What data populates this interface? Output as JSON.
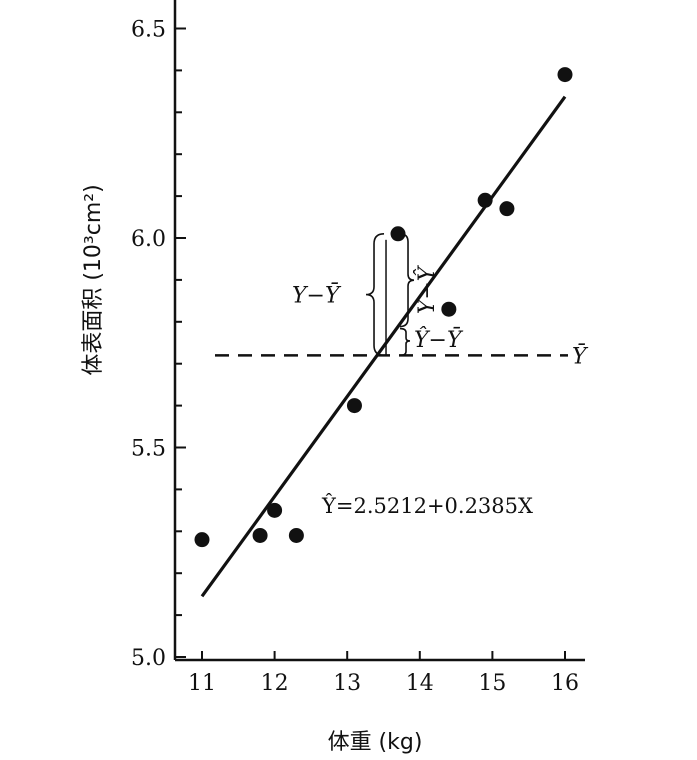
{
  "chart_data": {
    "type": "scatter",
    "xlabel": "体重 (kg)",
    "ylabel": "体表面积 (10³cm²)",
    "xlim": [
      10.7,
      16.2
    ],
    "ylim": [
      5.0,
      6.55
    ],
    "x_ticks": [
      "11",
      "12",
      "13",
      "14",
      "15",
      "16"
    ],
    "y_ticks": [
      "5.0",
      "5.5",
      "6.0",
      "6.5"
    ],
    "points": [
      {
        "x": 11.0,
        "y": 5.28
      },
      {
        "x": 11.8,
        "y": 5.29
      },
      {
        "x": 12.0,
        "y": 5.35
      },
      {
        "x": 12.3,
        "y": 5.29
      },
      {
        "x": 13.1,
        "y": 5.6
      },
      {
        "x": 13.7,
        "y": 6.01
      },
      {
        "x": 14.4,
        "y": 5.83
      },
      {
        "x": 14.9,
        "y": 6.09
      },
      {
        "x": 15.2,
        "y": 6.07
      },
      {
        "x": 16.0,
        "y": 6.39
      }
    ],
    "regression": {
      "intercept": 2.5212,
      "slope": 0.2385,
      "x_range": [
        11.0,
        16.0
      ],
      "equation": "Ŷ=2.5212+0.2385X"
    },
    "mean_y": {
      "value": 5.72,
      "label": "Ȳ"
    },
    "annotations": {
      "y_minus_ybar": "Y−Ȳ",
      "y_minus_yhat": "Y−Ŷ",
      "yhat_minus_ybar": "Ŷ−Ȳ"
    }
  }
}
